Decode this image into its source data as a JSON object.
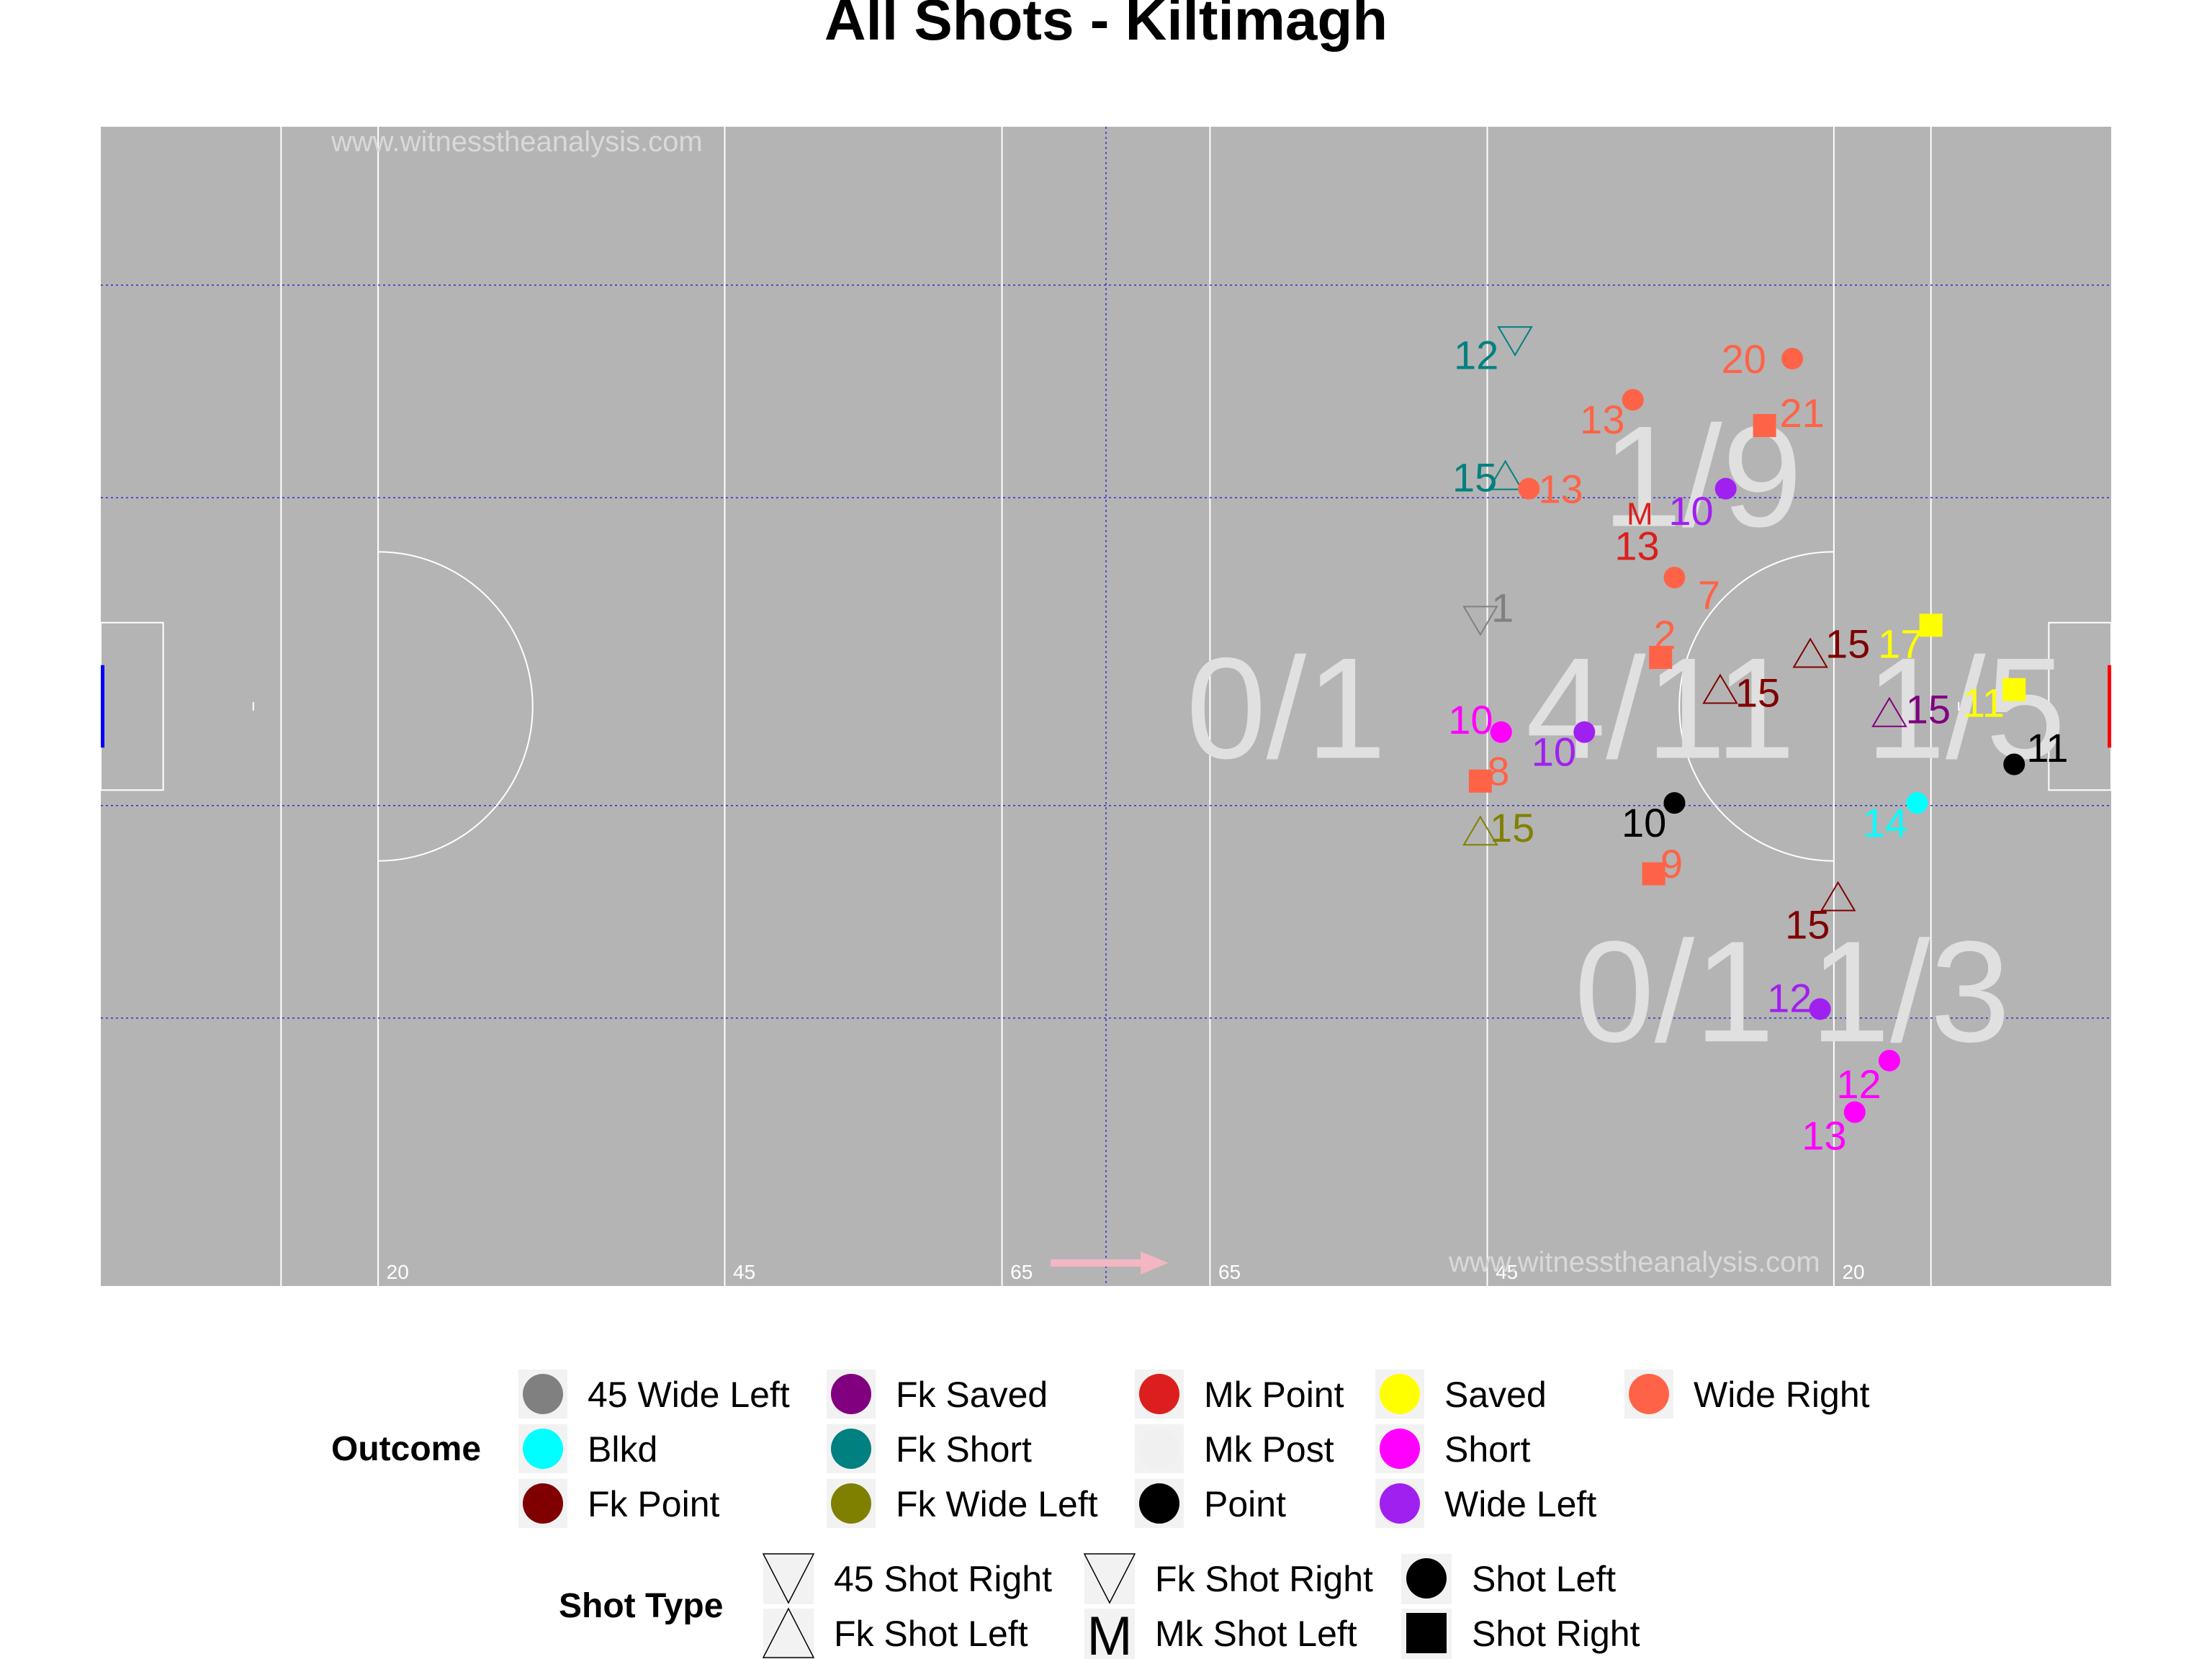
{
  "chart_data": {
    "type": "scatter",
    "title": "All Shots - Kiltimagh",
    "watermarks": [
      "www.witnesstheanalysis.com",
      "www.witnesstheanalysis.com"
    ],
    "pitch_labels": [
      "20",
      "45",
      "65",
      "65",
      "45",
      "20"
    ],
    "zone_labels": [
      {
        "text": "1/9",
        "zone": "top-right"
      },
      {
        "text": "0/1",
        "zone": "middle-center"
      },
      {
        "text": "4/11",
        "zone": "middle-right"
      },
      {
        "text": "1/5",
        "zone": "middle-far-right"
      },
      {
        "text": "0/1",
        "zone": "bottom-right"
      },
      {
        "text": "1/3",
        "zone": "bottom-far-right"
      }
    ],
    "x_range": [
      0,
      145
    ],
    "y_range": [
      0,
      90
    ],
    "colors": {
      "45 Wide Left": "#808080",
      "Blkd": "#00ffff",
      "Fk Point": "#800000",
      "Fk Saved": "#800080",
      "Fk Short": "#008080",
      "Fk Wide Left": "#808000",
      "Mk Point": "#dc1e1e",
      "Mk Post": "#f0f0f0",
      "Point": "#000000",
      "Saved": "#ffff00",
      "Short": "#ff00ff",
      "Wide Left": "#a020f0",
      "Wide Right": "#ff6347"
    },
    "shots": [
      {
        "x": 102.0,
        "y": 73.5,
        "label": "12",
        "outcome": "Fk Short",
        "type": "Fk Shot Right",
        "lx": -2.8,
        "ly": -1.2
      },
      {
        "x": 122.0,
        "y": 72.0,
        "label": "20",
        "outcome": "Wide Right",
        "type": "Shot Left",
        "lx": -3.5,
        "ly": 0
      },
      {
        "x": 110.5,
        "y": 68.8,
        "label": "13",
        "outcome": "Wide Right",
        "type": "Shot Left",
        "lx": -2.2,
        "ly": -1.5
      },
      {
        "x": 120.0,
        "y": 66.8,
        "label": "21",
        "outcome": "Wide Right",
        "type": "Shot Right",
        "lx": 2.7,
        "ly": 1.0
      },
      {
        "x": 101.3,
        "y": 62.8,
        "label": "15",
        "outcome": "Fk Short",
        "type": "Fk Shot Left",
        "lx": -2.2,
        "ly": 0
      },
      {
        "x": 103.0,
        "y": 61.9,
        "label": "13",
        "outcome": "Wide Right",
        "type": "Shot Left",
        "lx": 2.3,
        "ly": 0
      },
      {
        "x": 117.2,
        "y": 61.9,
        "label": "10",
        "outcome": "Wide Left",
        "type": "Shot Left",
        "lx": -2.5,
        "ly": -1.7
      },
      {
        "x": 111.0,
        "y": 60.0,
        "label": "13",
        "outcome": "Mk Point",
        "type": "Mk Shot Left",
        "lx": -0.2,
        "ly": -2.5
      },
      {
        "x": 113.5,
        "y": 55.0,
        "label": "7",
        "outcome": "Wide Right",
        "type": "Shot Left",
        "lx": 2.5,
        "ly": -1.3
      },
      {
        "x": 99.5,
        "y": 51.8,
        "label": "1",
        "outcome": "45 Wide Left",
        "type": "45 Shot Right",
        "lx": 1.6,
        "ly": 0.9
      },
      {
        "x": 112.5,
        "y": 48.8,
        "label": "2",
        "outcome": "Wide Right",
        "type": "Shot Right",
        "lx": 0.3,
        "ly": 1.8
      },
      {
        "x": 123.3,
        "y": 49.0,
        "label": "15",
        "outcome": "Fk Point",
        "type": "Fk Shot Left",
        "lx": 2.7,
        "ly": 0.9
      },
      {
        "x": 116.8,
        "y": 46.2,
        "label": "15",
        "outcome": "Fk Point",
        "type": "Fk Shot Left",
        "lx": 2.7,
        "ly": -0.1
      },
      {
        "x": 132.0,
        "y": 51.3,
        "label": "17",
        "outcome": "Saved",
        "type": "Shot Right",
        "lx": -2.2,
        "ly": -1.4
      },
      {
        "x": 138.0,
        "y": 46.3,
        "label": "11",
        "outcome": "Saved",
        "type": "Shot Right",
        "lx": -2.2,
        "ly": -1.0
      },
      {
        "x": 129.0,
        "y": 44.4,
        "label": "15",
        "outcome": "Fk Saved",
        "type": "Fk Shot Left",
        "lx": 2.8,
        "ly": 0.4
      },
      {
        "x": 101.0,
        "y": 43.0,
        "label": "10",
        "outcome": "Short",
        "type": "Shot Left",
        "lx": -2.2,
        "ly": 1.0
      },
      {
        "x": 107.0,
        "y": 43.0,
        "label": "10",
        "outcome": "Wide Left",
        "type": "Shot Left",
        "lx": -2.2,
        "ly": -1.5
      },
      {
        "x": 138.0,
        "y": 40.5,
        "label": "11",
        "outcome": "Point",
        "type": "Shot Left",
        "lx": 2.4,
        "ly": 1.3
      },
      {
        "x": 99.5,
        "y": 39.2,
        "label": "8",
        "outcome": "Wide Right",
        "type": "Shot Right",
        "lx": 1.3,
        "ly": 0.8
      },
      {
        "x": 113.5,
        "y": 37.5,
        "label": "10",
        "outcome": "Point",
        "type": "Shot Left",
        "lx": -2.2,
        "ly": -1.5
      },
      {
        "x": 131.0,
        "y": 37.5,
        "label": "14",
        "outcome": "Blkd",
        "type": "Shot Left",
        "lx": -2.3,
        "ly": -1.5
      },
      {
        "x": 99.5,
        "y": 35.2,
        "label": "15",
        "outcome": "Fk Wide Left",
        "type": "Fk Shot Left",
        "lx": 2.3,
        "ly": 0.4
      },
      {
        "x": 112.0,
        "y": 32.0,
        "label": "9",
        "outcome": "Wide Right",
        "type": "Shot Right",
        "lx": 1.3,
        "ly": 0.8
      },
      {
        "x": 125.3,
        "y": 30.1,
        "label": "15",
        "outcome": "Fk Point",
        "type": "Fk Shot Left",
        "lx": -2.2,
        "ly": -2.0
      },
      {
        "x": 124.0,
        "y": 21.5,
        "label": "12",
        "outcome": "Wide Left",
        "type": "Shot Left",
        "lx": -2.2,
        "ly": 0.9
      },
      {
        "x": 129.0,
        "y": 17.5,
        "label": "12",
        "outcome": "Short",
        "type": "Shot Left",
        "lx": -2.2,
        "ly": -1.8
      },
      {
        "x": 126.5,
        "y": 13.5,
        "label": "13",
        "outcome": "Short",
        "type": "Shot Left",
        "lx": -2.2,
        "ly": -1.8
      }
    ]
  },
  "legend": {
    "outcome_title": "Outcome",
    "outcome_items": [
      "45 Wide Left",
      "Blkd",
      "Fk Point",
      "Fk Saved",
      "Fk Short",
      "Fk Wide Left",
      "Mk Point",
      "Mk Post",
      "Point",
      "Saved",
      "Short",
      "Wide Left",
      "Wide Right"
    ],
    "shot_type_title": "Shot Type",
    "shot_type_items": [
      {
        "label": "45 Shot Right",
        "symbol": "tri-down"
      },
      {
        "label": "Fk Shot Left",
        "symbol": "tri-up"
      },
      {
        "label": "Fk Shot Right",
        "symbol": "tri-down"
      },
      {
        "label": "Mk Shot Left",
        "symbol": "M"
      },
      {
        "label": "Shot Left",
        "symbol": "circle"
      },
      {
        "label": "Shot Right",
        "symbol": "square"
      }
    ]
  }
}
